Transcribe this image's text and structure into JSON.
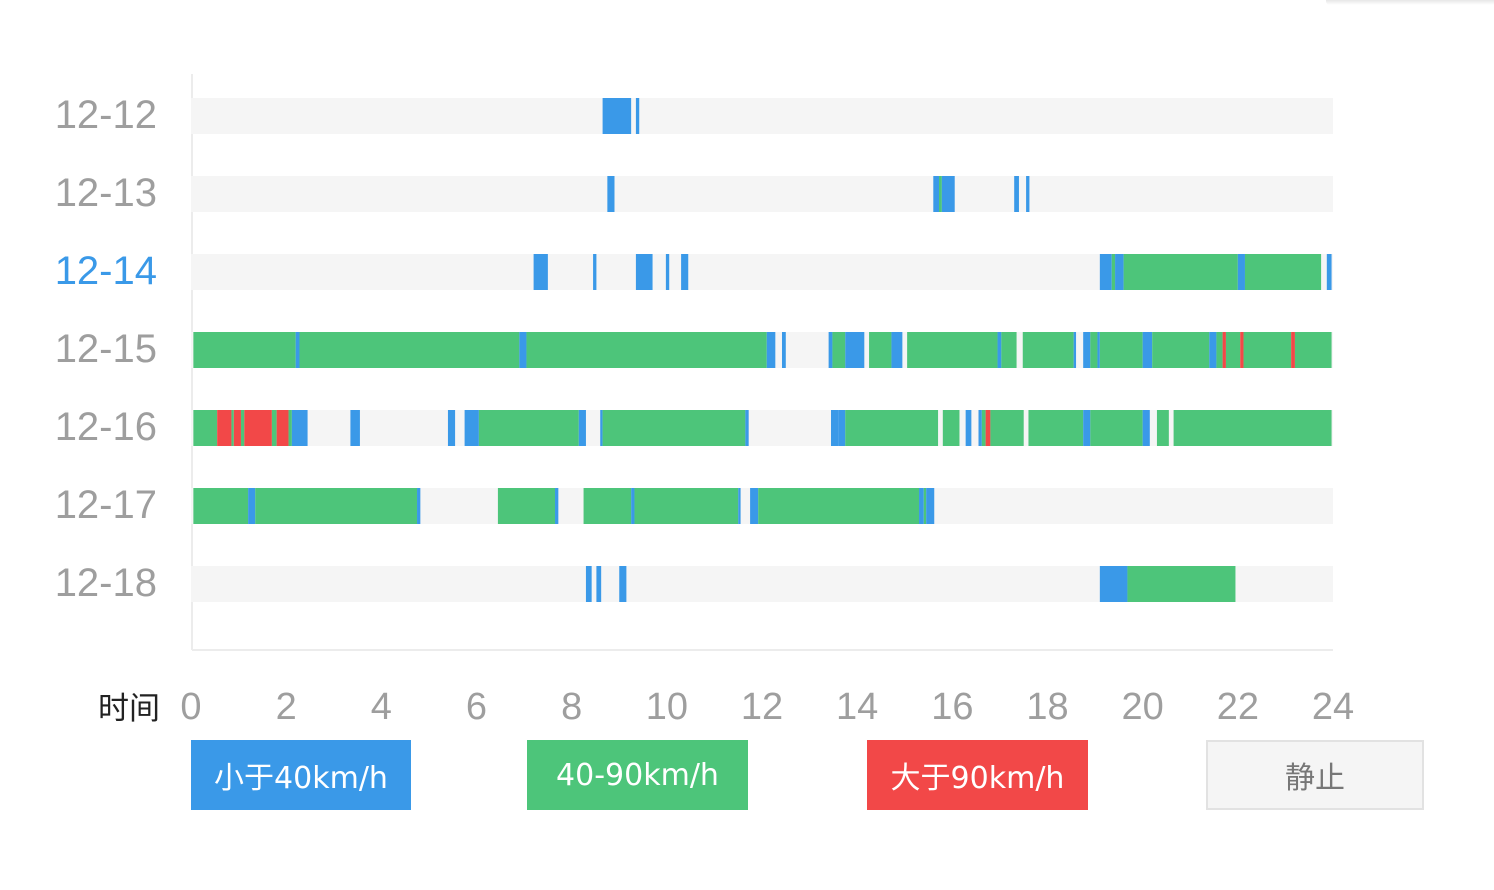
{
  "chart_data": {
    "type": "timeline",
    "xlabel": "时间",
    "xlim": [
      0,
      24
    ],
    "xticks": [
      "0",
      "2",
      "4",
      "6",
      "8",
      "10",
      "12",
      "14",
      "16",
      "18",
      "20",
      "22",
      "24"
    ],
    "highlight_row": "12-14",
    "legend": [
      {
        "key": "slow",
        "label": "小于40km/h"
      },
      {
        "key": "mid",
        "label": "40-90km/h"
      },
      {
        "key": "fast",
        "label": "大于90km/h"
      },
      {
        "key": "stop",
        "label": "静止"
      }
    ],
    "colors": {
      "slow": "#3a99e8",
      "mid": "#4dc57a",
      "fast": "#f24848",
      "stop": "#f5f5f5",
      "highlight": "#3a99e8",
      "label": "#9e9e9e"
    },
    "rows": [
      {
        "date": "12-12",
        "segments": [
          [
            "slow",
            8.65,
            9.25
          ],
          [
            "slow",
            9.35,
            9.42
          ]
        ]
      },
      {
        "date": "12-13",
        "segments": [
          [
            "slow",
            8.75,
            8.9
          ],
          [
            "slow",
            15.6,
            15.72
          ],
          [
            "mid",
            15.72,
            15.78
          ],
          [
            "slow",
            15.78,
            16.05
          ],
          [
            "slow",
            17.3,
            17.4
          ],
          [
            "slow",
            17.55,
            17.62
          ]
        ]
      },
      {
        "date": "12-14",
        "segments": [
          [
            "slow",
            7.2,
            7.5
          ],
          [
            "slow",
            8.45,
            8.52
          ],
          [
            "slow",
            9.35,
            9.7
          ],
          [
            "slow",
            9.98,
            10.05
          ],
          [
            "slow",
            10.3,
            10.45
          ],
          [
            "slow",
            19.1,
            19.35
          ],
          [
            "mid",
            19.35,
            19.42
          ],
          [
            "slow",
            19.42,
            19.6
          ],
          [
            "mid",
            19.6,
            22.0
          ],
          [
            "slow",
            22.0,
            22.15
          ],
          [
            "mid",
            22.15,
            23.75
          ],
          [
            "slow",
            23.87,
            23.97
          ]
        ]
      },
      {
        "date": "12-15",
        "segments": [
          [
            "mid",
            0.05,
            2.2
          ],
          [
            "slow",
            2.2,
            2.28
          ],
          [
            "mid",
            2.28,
            6.9
          ],
          [
            "slow",
            6.9,
            7.05
          ],
          [
            "mid",
            7.05,
            12.1
          ],
          [
            "slow",
            12.1,
            12.28
          ],
          [
            "slow",
            12.42,
            12.5
          ],
          [
            "slow",
            13.4,
            13.48
          ],
          [
            "mid",
            13.48,
            13.75
          ],
          [
            "slow",
            13.75,
            14.15
          ],
          [
            "mid",
            14.25,
            14.72
          ],
          [
            "slow",
            14.72,
            14.95
          ],
          [
            "mid",
            15.05,
            16.95
          ],
          [
            "slow",
            16.95,
            17.03
          ],
          [
            "mid",
            17.03,
            17.35
          ],
          [
            "mid",
            17.48,
            18.55
          ],
          [
            "slow",
            18.55,
            18.6
          ],
          [
            "slow",
            18.75,
            18.9
          ],
          [
            "mid",
            18.9,
            19.05
          ],
          [
            "slow",
            19.05,
            19.1
          ],
          [
            "mid",
            19.1,
            20.0
          ],
          [
            "slow",
            20.0,
            20.2
          ],
          [
            "mid",
            20.2,
            21.4
          ],
          [
            "slow",
            21.4,
            21.55
          ],
          [
            "mid",
            21.55,
            21.68
          ],
          [
            "fast",
            21.68,
            21.75
          ],
          [
            "mid",
            21.75,
            22.05
          ],
          [
            "fast",
            22.05,
            22.12
          ],
          [
            "mid",
            22.12,
            23.12
          ],
          [
            "fast",
            23.12,
            23.2
          ],
          [
            "mid",
            23.2,
            23.97
          ]
        ]
      },
      {
        "date": "12-16",
        "segments": [
          [
            "mid",
            0.05,
            0.55
          ],
          [
            "fast",
            0.55,
            0.85
          ],
          [
            "mid",
            0.85,
            0.9
          ],
          [
            "fast",
            0.9,
            1.05
          ],
          [
            "mid",
            1.05,
            1.12
          ],
          [
            "fast",
            1.12,
            1.7
          ],
          [
            "mid",
            1.7,
            1.8
          ],
          [
            "fast",
            1.8,
            2.05
          ],
          [
            "mid",
            2.05,
            2.12
          ],
          [
            "slow",
            2.12,
            2.45
          ],
          [
            "slow",
            3.35,
            3.55
          ],
          [
            "slow",
            5.4,
            5.55
          ],
          [
            "slow",
            5.75,
            6.05
          ],
          [
            "mid",
            6.05,
            8.15
          ],
          [
            "slow",
            8.15,
            8.3
          ],
          [
            "slow",
            8.6,
            8.65
          ],
          [
            "mid",
            8.65,
            11.65
          ],
          [
            "slow",
            11.65,
            11.72
          ],
          [
            "slow",
            13.45,
            13.6
          ],
          [
            "slow",
            13.6,
            13.75
          ],
          [
            "mid",
            13.75,
            15.7
          ],
          [
            "mid",
            15.8,
            16.15
          ],
          [
            "slow",
            16.28,
            16.4
          ],
          [
            "slow",
            16.55,
            16.62
          ],
          [
            "mid",
            16.62,
            16.7
          ],
          [
            "fast",
            16.7,
            16.8
          ],
          [
            "mid",
            16.8,
            17.5
          ],
          [
            "mid",
            17.6,
            18.75
          ],
          [
            "slow",
            18.75,
            18.9
          ],
          [
            "mid",
            18.9,
            20.0
          ],
          [
            "slow",
            20.0,
            20.15
          ],
          [
            "mid",
            20.3,
            20.55
          ],
          [
            "mid",
            20.65,
            23.97
          ]
        ]
      },
      {
        "date": "12-17",
        "segments": [
          [
            "mid",
            0.05,
            1.2
          ],
          [
            "slow",
            1.2,
            1.35
          ],
          [
            "mid",
            1.35,
            4.75
          ],
          [
            "slow",
            4.75,
            4.82
          ],
          [
            "mid",
            6.45,
            7.65
          ],
          [
            "slow",
            7.65,
            7.72
          ],
          [
            "mid",
            8.25,
            9.25
          ],
          [
            "slow",
            9.25,
            9.32
          ],
          [
            "mid",
            9.32,
            11.5
          ],
          [
            "slow",
            11.5,
            11.55
          ],
          [
            "slow",
            11.75,
            11.92
          ],
          [
            "mid",
            11.92,
            15.3
          ],
          [
            "slow",
            15.3,
            15.4
          ],
          [
            "mid",
            15.4,
            15.45
          ],
          [
            "slow",
            15.45,
            15.62
          ]
        ]
      },
      {
        "date": "12-18",
        "segments": [
          [
            "slow",
            8.3,
            8.42
          ],
          [
            "slow",
            8.52,
            8.62
          ],
          [
            "slow",
            9.0,
            9.15
          ],
          [
            "slow",
            19.1,
            19.68
          ],
          [
            "mid",
            19.68,
            21.95
          ]
        ]
      }
    ]
  }
}
